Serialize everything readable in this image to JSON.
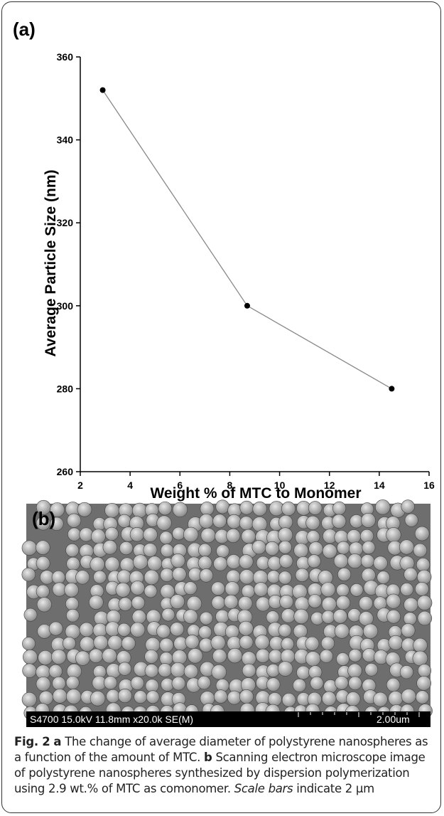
{
  "panel_a_label": "(a)",
  "panel_b_label": "(b)",
  "chart_data": {
    "type": "line",
    "xlabel": "Weight % of MTC to Monomer",
    "ylabel": "Average Particle Size (nm)",
    "x": [
      2.9,
      8.7,
      14.5
    ],
    "series": [
      {
        "color": "#888888",
        "values": [
          352,
          300,
          280
        ]
      }
    ],
    "xlim": [
      2,
      16
    ],
    "xticks": [
      2,
      4,
      6,
      8,
      10,
      12,
      14,
      16
    ],
    "ylim": [
      260,
      360
    ],
    "yticks": [
      260,
      280,
      300,
      320,
      340,
      360
    ]
  },
  "sem": {
    "info": "S4700 15.0kV 11.8mm x20.0k SE(M)",
    "scale": "2.00um"
  },
  "caption": {
    "label": "Fig. 2",
    "a": "a",
    "a_text": "The change of average diameter of polystyrene nanospheres as a function of the amount of MTC.",
    "b": "b",
    "b_text": "Scanning electron microscope image of polystyrene nanospheres synthesized by dispersion polymerization using 2.9 wt.% of MTC as comonomer.",
    "italic": "Scale bars",
    "end": "indicate 2 μm"
  }
}
